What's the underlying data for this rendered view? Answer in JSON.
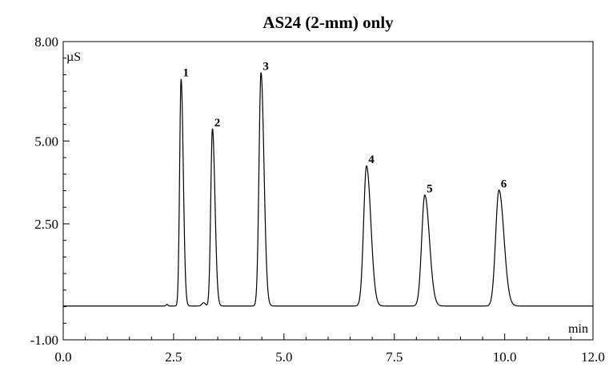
{
  "chart_data": {
    "type": "line",
    "title": "AS24 (2-mm) only",
    "y_unit": "µS",
    "x_unit": "min",
    "xlim": [
      0.0,
      12.0
    ],
    "ylim": [
      -1.0,
      8.0
    ],
    "x_ticks": [
      "0.0",
      "2.5",
      "5.0",
      "7.5",
      "10.0",
      "12.0"
    ],
    "x_tick_values": [
      0.0,
      2.5,
      5.0,
      7.5,
      10.0,
      12.0
    ],
    "y_ticks": [
      "-1.00",
      "2.50",
      "5.00",
      "8.00"
    ],
    "y_tick_values": [
      -1.0,
      2.5,
      5.0,
      8.0
    ],
    "baseline": 0.02,
    "grid": false,
    "peaks": [
      {
        "label": "1",
        "time": 2.67,
        "height": 6.85,
        "width": 0.033
      },
      {
        "label": "2",
        "time": 3.38,
        "height": 5.35,
        "width": 0.038
      },
      {
        "label": "3",
        "time": 4.48,
        "height": 7.05,
        "width": 0.045
      },
      {
        "label": "4",
        "time": 6.87,
        "height": 4.23,
        "width": 0.065
      },
      {
        "label": "5",
        "time": 8.19,
        "height": 3.35,
        "width": 0.07
      },
      {
        "label": "6",
        "time": 9.87,
        "height": 3.5,
        "width": 0.075
      }
    ]
  }
}
